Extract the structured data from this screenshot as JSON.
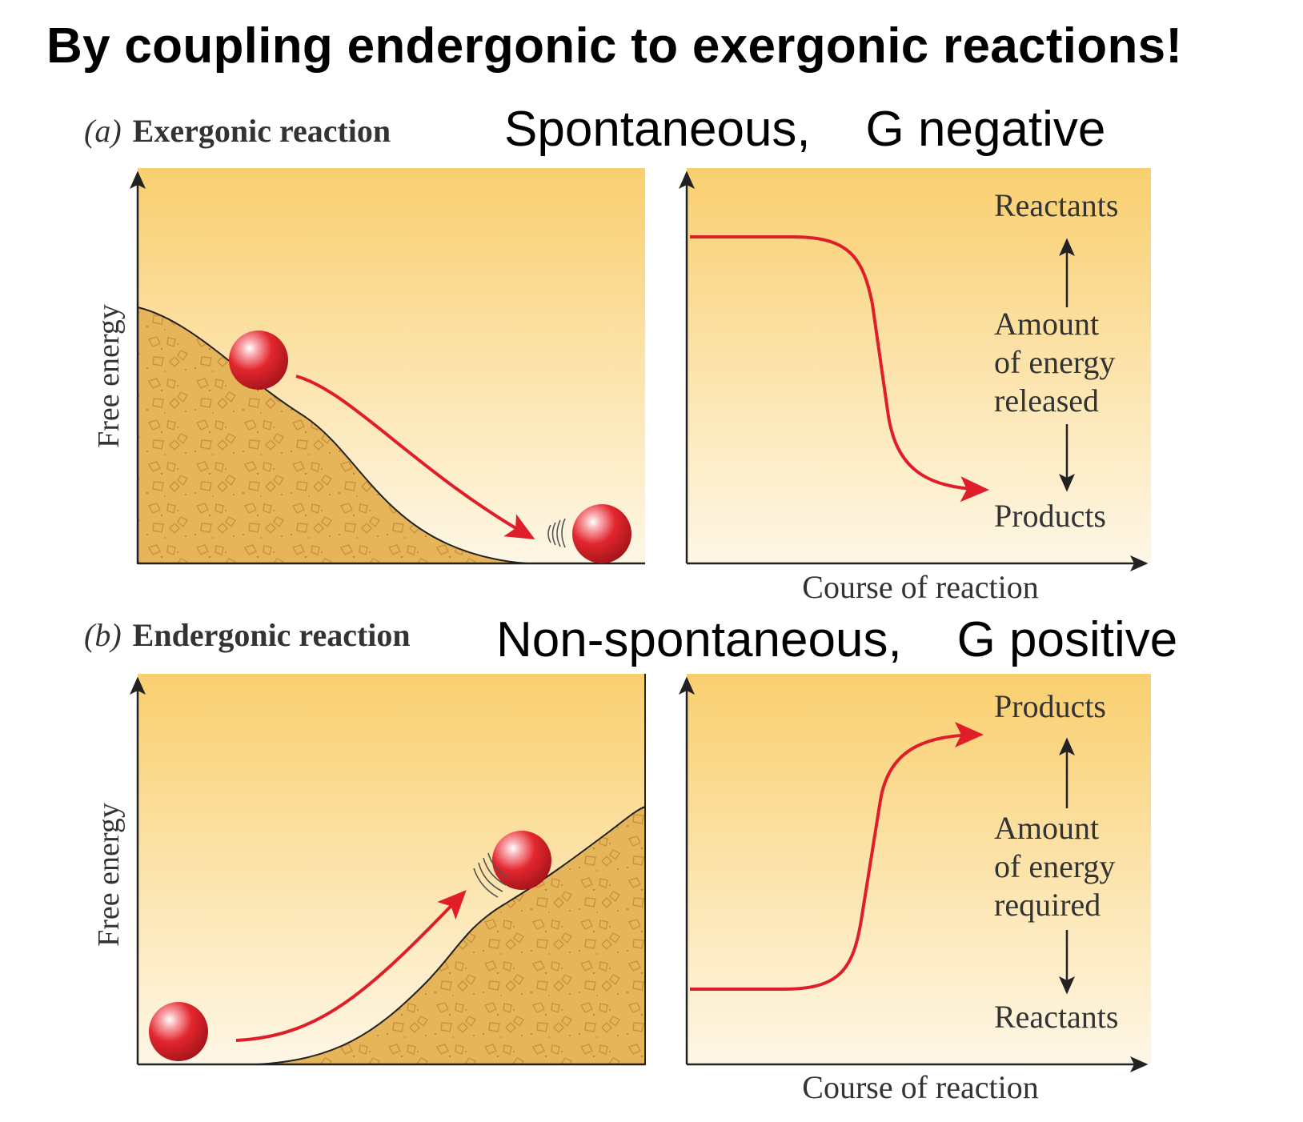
{
  "title": "By coupling endergonic to exergonic reactions!",
  "panels": [
    {
      "letter": "(a)",
      "name": "Exergonic reaction",
      "caption": "Spontaneous,    G negative",
      "y_axis_label": "Free energy",
      "x_axis_label": "Course of reaction",
      "top_label": "Reactants",
      "middle_label": [
        "Amount",
        "of energy",
        "released"
      ],
      "bottom_label": "Products"
    },
    {
      "letter": "(b)",
      "name": "Endergonic reaction",
      "caption": "Non-spontaneous,    G positive",
      "y_axis_label": "Free energy",
      "x_axis_label": "Course of reaction",
      "top_label": "Products",
      "middle_label": [
        "Amount",
        "of energy",
        "required"
      ],
      "bottom_label": "Reactants"
    }
  ],
  "colors": {
    "panel_top": "#f9cf6f",
    "panel_bottom": "#fef7e6",
    "hill_fill": "#e6b55a",
    "curve": "#e01e2a",
    "ball": "#e3262e"
  }
}
